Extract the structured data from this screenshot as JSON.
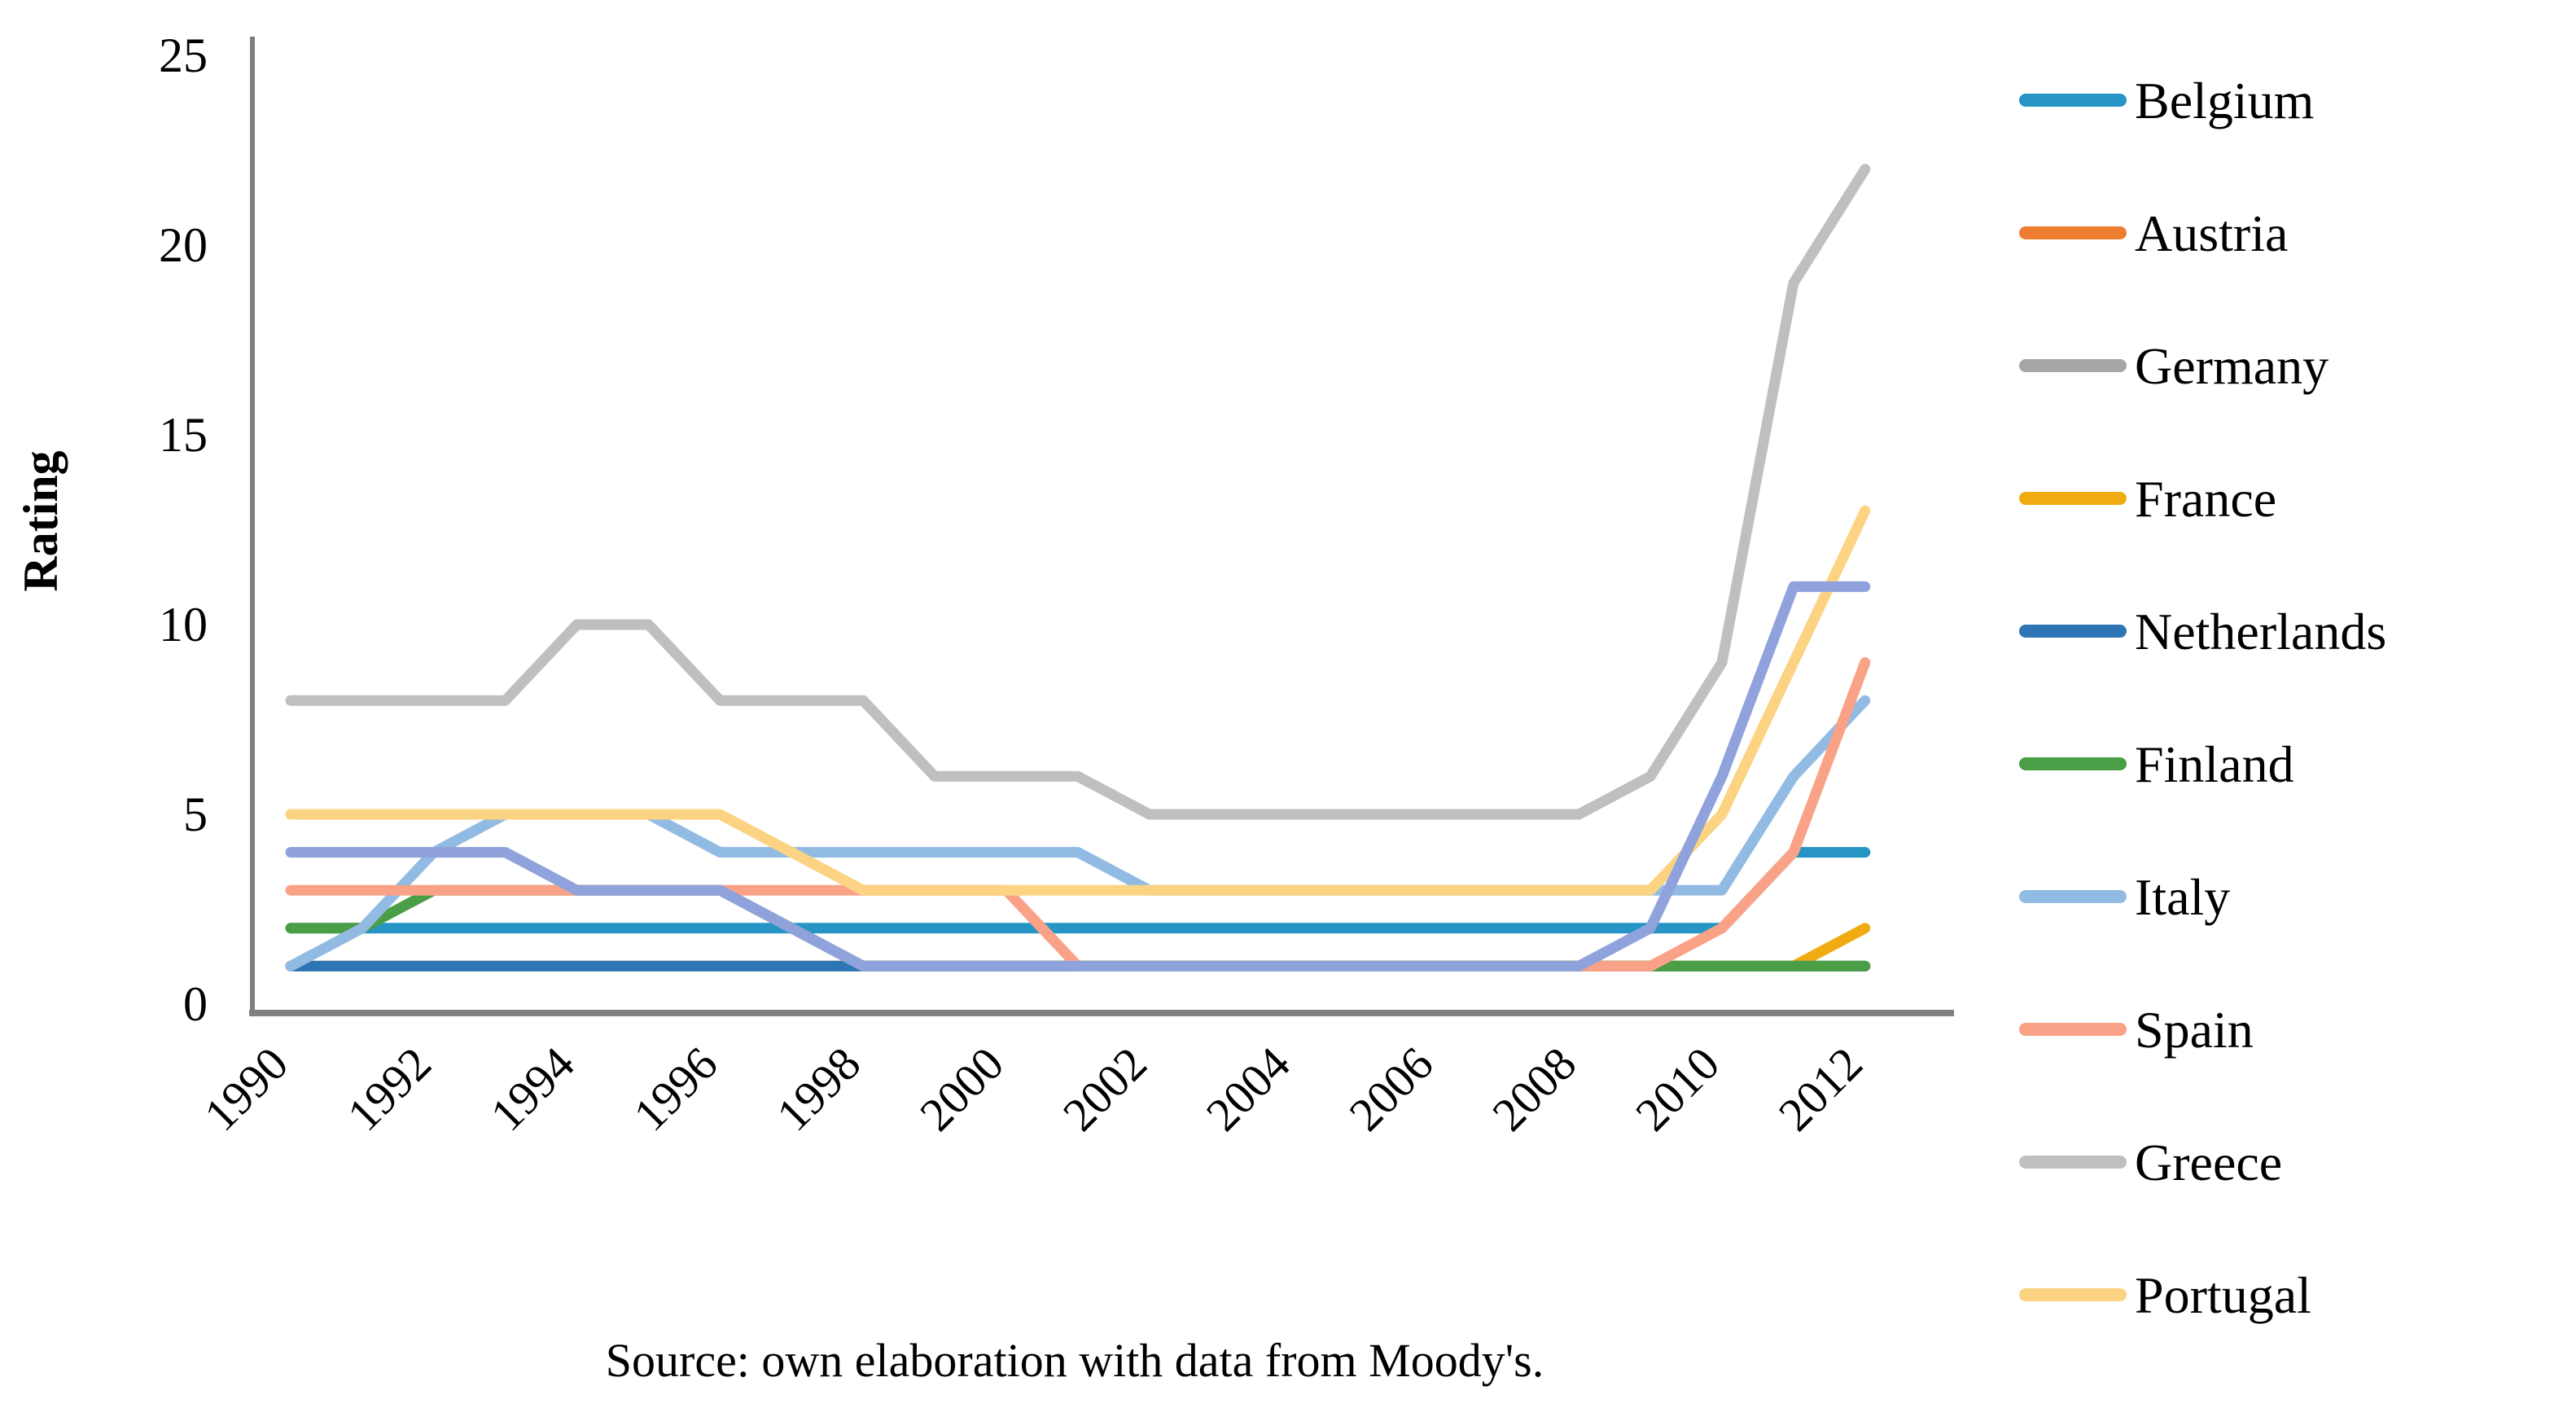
{
  "caption": "Source: own elaboration with data from Moody's.",
  "y_axis": {
    "label": "Rating",
    "ticks": [
      0,
      5,
      10,
      15,
      20,
      25
    ],
    "min": 0,
    "max": 25
  },
  "x_axis": {
    "ticks": [
      1990,
      1992,
      1994,
      1996,
      1998,
      2000,
      2002,
      2004,
      2006,
      2008,
      2010,
      2012
    ]
  },
  "legend": [
    {
      "label": "Belgium",
      "color": "#2695C5"
    },
    {
      "label": "Austria",
      "color": "#ED7D31"
    },
    {
      "label": "Germany",
      "color": "#A6A6A6"
    },
    {
      "label": "France",
      "color": "#F0AB12"
    },
    {
      "label": "Netherlands",
      "color": "#2E75B6"
    },
    {
      "label": "Finland",
      "color": "#4A9E45"
    },
    {
      "label": "Italy",
      "color": "#92BBE3"
    },
    {
      "label": "Spain",
      "color": "#F9A287"
    },
    {
      "label": "Greece",
      "color": "#BFBFBF"
    },
    {
      "label": "Portugal",
      "color": "#FCD383"
    }
  ],
  "chart_data": {
    "type": "line",
    "title": "",
    "xlabel": "",
    "ylabel": "Rating",
    "ylim": [
      0,
      25
    ],
    "xlim": [
      1990,
      2012
    ],
    "grid": false,
    "legend_position": "right",
    "x": [
      1990,
      1991,
      1992,
      1993,
      1994,
      1995,
      1996,
      1997,
      1998,
      1999,
      2000,
      2001,
      2002,
      2003,
      2004,
      2005,
      2006,
      2007,
      2008,
      2009,
      2010,
      2011,
      2012
    ],
    "series": [
      {
        "name": "Belgium",
        "color": "#2695C5",
        "in_legend": true,
        "values": [
          2,
          2,
          2,
          2,
          2,
          2,
          2,
          2,
          2,
          2,
          2,
          2,
          2,
          2,
          2,
          2,
          2,
          2,
          2,
          2,
          2,
          4,
          4
        ]
      },
      {
        "name": "Austria",
        "color": "#ED7D31",
        "in_legend": true,
        "values": [
          1,
          1,
          1,
          1,
          1,
          1,
          1,
          1,
          1,
          1,
          1,
          1,
          1,
          1,
          1,
          1,
          1,
          1,
          1,
          1,
          1,
          1,
          1
        ]
      },
      {
        "name": "Germany",
        "color": "#A6A6A6",
        "in_legend": true,
        "values": [
          1,
          1,
          1,
          1,
          1,
          1,
          1,
          1,
          1,
          1,
          1,
          1,
          1,
          1,
          1,
          1,
          1,
          1,
          1,
          1,
          1,
          1,
          1
        ]
      },
      {
        "name": "France",
        "color": "#F0AB12",
        "in_legend": true,
        "values": [
          1,
          1,
          1,
          1,
          1,
          1,
          1,
          1,
          1,
          1,
          1,
          1,
          1,
          1,
          1,
          1,
          1,
          1,
          1,
          1,
          1,
          1,
          2
        ]
      },
      {
        "name": "Netherlands",
        "color": "#2E75B6",
        "in_legend": true,
        "values": [
          1,
          1,
          1,
          1,
          1,
          1,
          1,
          1,
          1,
          1,
          1,
          1,
          1,
          1,
          1,
          1,
          1,
          1,
          1,
          1,
          1,
          1,
          1
        ]
      },
      {
        "name": "Finland",
        "color": "#4A9E45",
        "in_legend": true,
        "values": [
          2,
          2,
          3,
          3,
          3,
          3,
          3,
          2,
          1,
          1,
          1,
          1,
          1,
          1,
          1,
          1,
          1,
          1,
          1,
          1,
          1,
          1,
          1
        ]
      },
      {
        "name": "Italy",
        "color": "#92BBE3",
        "in_legend": true,
        "values": [
          1,
          2,
          4,
          5,
          5,
          5,
          4,
          4,
          4,
          4,
          4,
          4,
          3,
          3,
          3,
          3,
          3,
          3,
          3,
          3,
          3,
          6,
          8
        ]
      },
      {
        "name": "Spain",
        "color": "#F9A287",
        "in_legend": true,
        "values": [
          3,
          3,
          3,
          3,
          3,
          3,
          3,
          3,
          3,
          3,
          3,
          1,
          1,
          1,
          1,
          1,
          1,
          1,
          1,
          1,
          2,
          4,
          9
        ]
      },
      {
        "name": "Greece",
        "color": "#BFBFBF",
        "in_legend": true,
        "values": [
          8,
          8,
          8,
          8,
          10,
          10,
          8,
          8,
          8,
          6,
          6,
          6,
          5,
          5,
          5,
          5,
          5,
          5,
          5,
          6,
          9,
          19,
          22
        ]
      },
      {
        "name": "Portugal",
        "color": "#FCD383",
        "in_legend": true,
        "values": [
          5,
          5,
          5,
          5,
          5,
          5,
          5,
          4,
          3,
          3,
          3,
          3,
          3,
          3,
          3,
          3,
          3,
          3,
          3,
          3,
          5,
          9,
          13
        ]
      },
      {
        "name": "(unlabeled)",
        "color": "#8FA2DB",
        "in_legend": false,
        "values": [
          4,
          4,
          4,
          4,
          3,
          3,
          3,
          2,
          1,
          1,
          1,
          1,
          1,
          1,
          1,
          1,
          1,
          1,
          1,
          2,
          6,
          11,
          11
        ]
      }
    ]
  }
}
